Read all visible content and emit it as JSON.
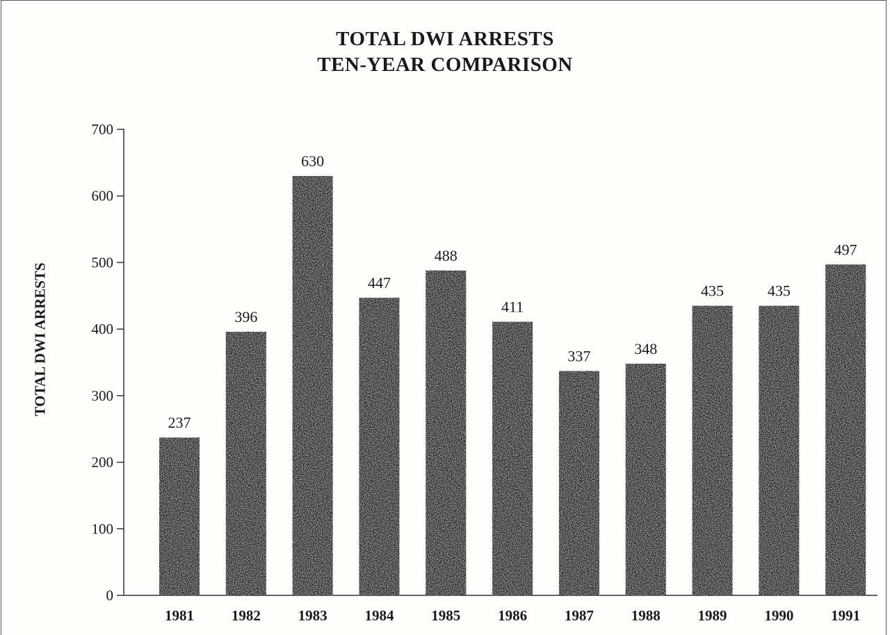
{
  "chart_data": {
    "type": "bar",
    "title": "TOTAL DWI ARRESTS",
    "subtitle": "TEN-YEAR COMPARISON",
    "xlabel": "",
    "ylabel": "TOTAL DWI ARRESTS",
    "categories": [
      "1981",
      "1982",
      "1983",
      "1984",
      "1985",
      "1986",
      "1987",
      "1988",
      "1989",
      "1990",
      "1991"
    ],
    "values": [
      237,
      396,
      630,
      447,
      488,
      411,
      337,
      348,
      435,
      435,
      497
    ],
    "ylim": [
      0,
      700
    ],
    "yticks": [
      0,
      100,
      200,
      300,
      400,
      500,
      600,
      700
    ],
    "grid": false,
    "legend": "none",
    "bar_color": "#1c1c1c",
    "bar_texture_color": "#8a8a8a"
  }
}
